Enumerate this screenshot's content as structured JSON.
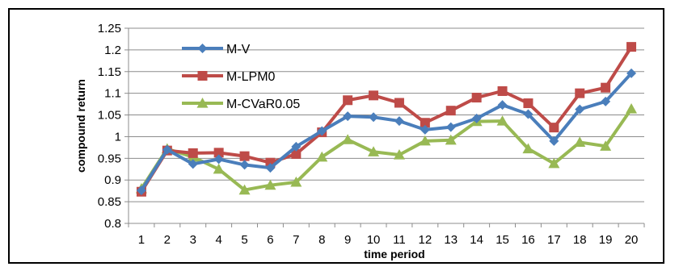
{
  "chart_data": {
    "type": "line",
    "xlabel": "time period",
    "ylabel": "compound return",
    "x": [
      1,
      2,
      3,
      4,
      5,
      6,
      7,
      8,
      9,
      10,
      11,
      12,
      13,
      14,
      15,
      16,
      17,
      18,
      19,
      20
    ],
    "ylim": [
      0.8,
      1.25
    ],
    "yticks": [
      "0.8",
      "0.85",
      "0.9",
      "0.95",
      "1",
      "1.05",
      "1.1",
      "1.15",
      "1.2",
      "1.25"
    ],
    "grid": "horizontal",
    "legend": "top-left",
    "series": [
      {
        "name": "M-V",
        "color": "#4a7ebb",
        "marker": "diamond",
        "values": [
          0.876,
          0.97,
          0.937,
          0.948,
          0.935,
          0.928,
          0.977,
          1.013,
          1.047,
          1.045,
          1.036,
          1.016,
          1.022,
          1.042,
          1.073,
          1.052,
          0.99,
          1.063,
          1.081,
          1.146
        ]
      },
      {
        "name": "M-LPM0",
        "color": "#be4b48",
        "marker": "square",
        "values": [
          0.873,
          0.968,
          0.962,
          0.963,
          0.955,
          0.94,
          0.96,
          1.01,
          1.084,
          1.095,
          1.078,
          1.032,
          1.06,
          1.09,
          1.105,
          1.077,
          1.021,
          1.1,
          1.113,
          1.207
        ]
      },
      {
        "name": "M-CVaR0.05",
        "color": "#98b954",
        "marker": "triangle",
        "values": [
          0.88,
          0.972,
          0.953,
          0.925,
          0.877,
          0.888,
          0.895,
          0.953,
          0.993,
          0.965,
          0.958,
          0.99,
          0.992,
          1.035,
          1.036,
          0.972,
          0.938,
          0.987,
          0.978,
          1.064
        ]
      }
    ]
  }
}
